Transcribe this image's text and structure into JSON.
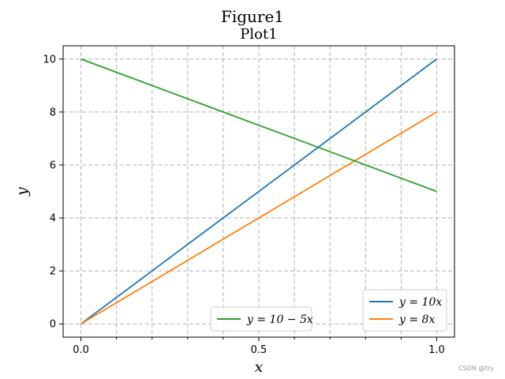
{
  "figure": {
    "suptitle": "Figure1",
    "watermark": "CSDN @fzy"
  },
  "chart_data": {
    "type": "line",
    "title": "Plot1",
    "xlabel": "x",
    "ylabel": "y",
    "xlim": [
      -0.05,
      1.05
    ],
    "ylim": [
      -0.5,
      10.5
    ],
    "x_ticks": [
      0.0,
      0.5,
      1.0
    ],
    "x_tick_labels": [
      "0.0",
      "0.5",
      "1.0"
    ],
    "x_minor_ticks": [
      0.1,
      0.2,
      0.3,
      0.4,
      0.6,
      0.7,
      0.8,
      0.9
    ],
    "y_ticks": [
      0,
      2,
      4,
      6,
      8,
      10
    ],
    "y_tick_labels": [
      "0",
      "2",
      "4",
      "6",
      "8",
      "10"
    ],
    "grid": true,
    "grid_style": "dashed",
    "series": [
      {
        "name": "y = 10x",
        "color": "#1f77b4",
        "x": [
          0,
          1
        ],
        "y": [
          0,
          10
        ]
      },
      {
        "name": "y = 8x",
        "color": "#ff7f0e",
        "x": [
          0,
          1
        ],
        "y": [
          0,
          8
        ]
      },
      {
        "name": "y = 10 − 5x",
        "color": "#2ca02c",
        "x": [
          0,
          1
        ],
        "y": [
          10,
          5
        ]
      }
    ],
    "legends": [
      {
        "placement": "lower-right",
        "entries": [
          "y = 10x",
          "y = 8x"
        ]
      },
      {
        "placement": "lower-center",
        "entries": [
          "y = 10 − 5x"
        ]
      }
    ]
  }
}
